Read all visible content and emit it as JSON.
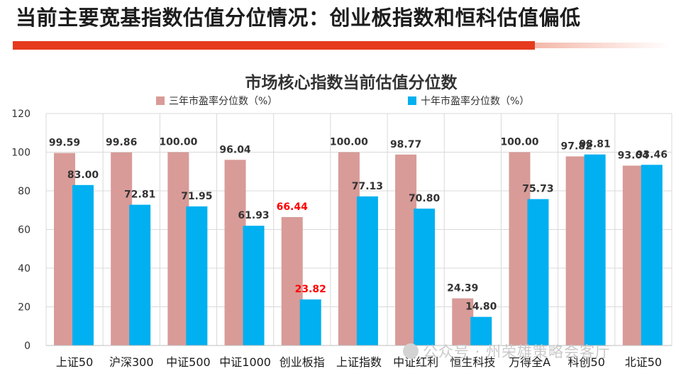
{
  "page_title": "当前主要宽基指数估值分位情况：创业板指数和恒科估值偏低",
  "watermark_text": "公众号 · 州荣雄策略会客厅",
  "colors": {
    "title_bar": "#e63a1e",
    "series_a": "#d89b98",
    "series_b": "#00b0f0",
    "highlight_label": "#ff0000"
  },
  "chart_data": {
    "type": "bar",
    "title": "市场核心指数当前估值分位数",
    "categories": [
      "上证50",
      "沪深300",
      "中证500",
      "中证1000",
      "创业板指",
      "上证指数",
      "中证红利",
      "恒生科技",
      "万得全A",
      "科创50",
      "北证50"
    ],
    "series": [
      {
        "name": "三年市盈率分位数（%）",
        "values": [
          99.59,
          99.86,
          100.0,
          96.04,
          66.44,
          100.0,
          98.77,
          24.39,
          100.0,
          97.82,
          93.04
        ],
        "labels": [
          "99.59",
          "99.86",
          "100.00",
          "96.04",
          "66.44",
          "100.00",
          "98.77",
          "24.39",
          "100.00",
          "97.82",
          "93.04"
        ]
      },
      {
        "name": "十年市盈率分位数（%）",
        "values": [
          83.0,
          72.81,
          71.95,
          61.93,
          23.82,
          77.13,
          70.8,
          14.8,
          75.73,
          98.81,
          93.46
        ],
        "labels": [
          "83.00",
          "72.81",
          "71.95",
          "61.93",
          "23.82",
          "77.13",
          "70.80",
          "14.80",
          "75.73",
          "98.81",
          "93.46"
        ]
      }
    ],
    "highlight_category": "创业板指",
    "ylim": [
      0,
      120
    ],
    "yticks": [
      "0",
      "20",
      "40",
      "60",
      "80",
      "100",
      "120"
    ],
    "grid": true,
    "legend_position": "top"
  }
}
